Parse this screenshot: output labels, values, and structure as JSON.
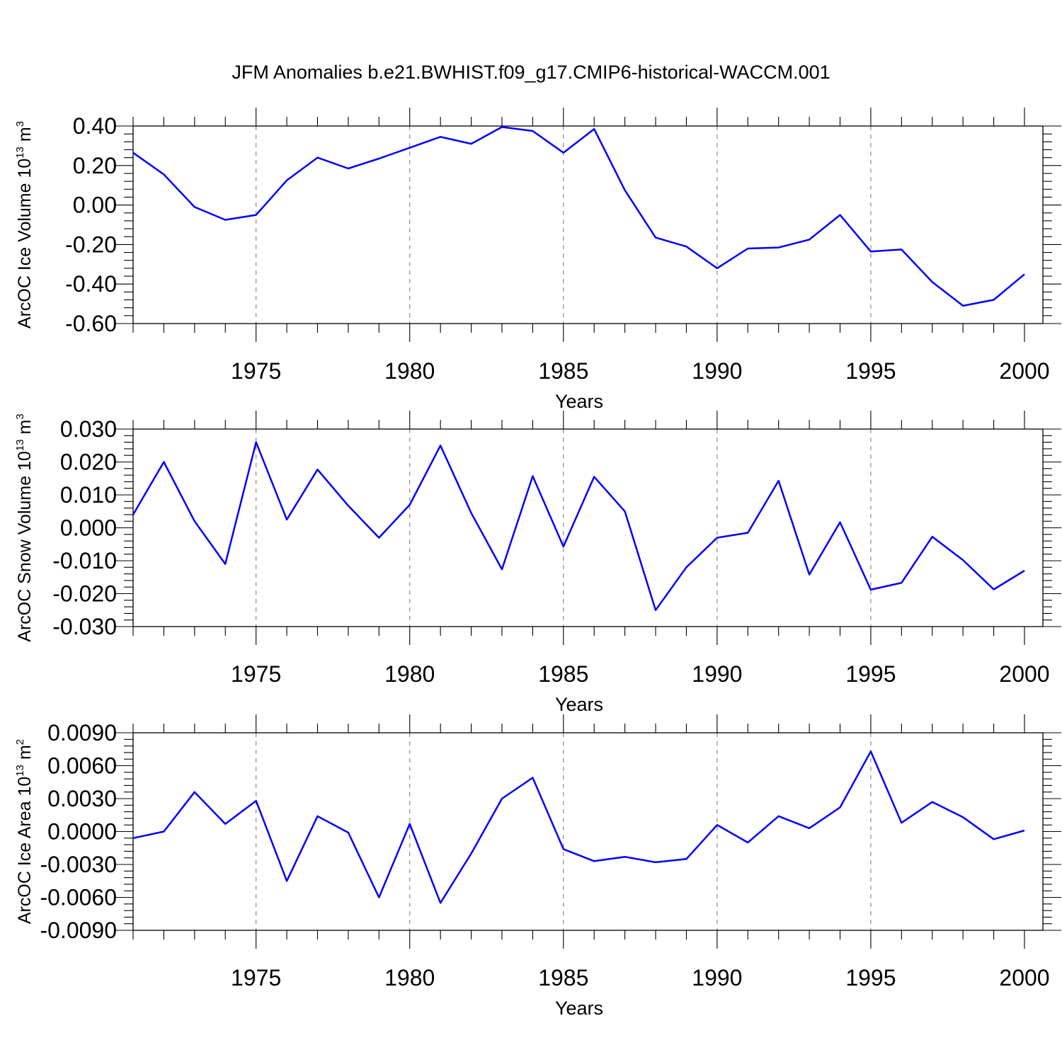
{
  "figure": {
    "title": "JFM Anomalies b.e21.BWHIST.f09_g17.CMIP6-historical-WACCM.001"
  },
  "colors": {
    "series": "#0000ff",
    "grid": "#808080",
    "axis": "#000000"
  },
  "chart_data": [
    {
      "type": "line",
      "title": "",
      "xlabel": "Years",
      "ylabel": "ArcOC Ice Volume 10",
      "ylabel_sup": "13",
      "ylabel_unit": "m",
      "ylabel_unit_sup": "3",
      "xlim": [
        1971,
        2000
      ],
      "ylim": [
        -0.6,
        0.4
      ],
      "yticks": [
        "0.40",
        "0.20",
        "0.00",
        "-0.20",
        "-0.40",
        "-0.60"
      ],
      "ytick_values": [
        0.4,
        0.2,
        0.0,
        -0.2,
        -0.4,
        -0.6
      ],
      "xticks": [
        "1975",
        "1980",
        "1985",
        "1990",
        "1995",
        "2000"
      ],
      "xtick_values": [
        1975,
        1980,
        1985,
        1990,
        1995,
        2000
      ],
      "grid": "vertical dashed at major x ticks",
      "legend": "none",
      "x": [
        1971,
        1972,
        1973,
        1974,
        1975,
        1976,
        1977,
        1978,
        1979,
        1980,
        1981,
        1982,
        1983,
        1984,
        1985,
        1986,
        1987,
        1988,
        1989,
        1990,
        1991,
        1992,
        1993,
        1994,
        1995,
        1996,
        1997,
        1998,
        1999,
        2000
      ],
      "values": [
        0.265,
        0.155,
        -0.01,
        -0.075,
        -0.05,
        0.125,
        0.24,
        0.185,
        0.235,
        0.29,
        0.345,
        0.31,
        0.395,
        0.375,
        0.265,
        0.385,
        0.075,
        -0.165,
        -0.21,
        -0.32,
        -0.22,
        -0.215,
        -0.175,
        -0.05,
        -0.235,
        -0.225,
        -0.39,
        -0.51,
        -0.48,
        -0.35
      ]
    },
    {
      "type": "line",
      "title": "",
      "xlabel": "Years",
      "ylabel": "ArcOC Snow Volume 10",
      "ylabel_sup": "13",
      "ylabel_unit": "m",
      "ylabel_unit_sup": "3",
      "xlim": [
        1971,
        2000
      ],
      "ylim": [
        -0.03,
        0.03
      ],
      "yticks": [
        "0.030",
        "0.020",
        "0.010",
        "0.000",
        "-0.010",
        "-0.020",
        "-0.030"
      ],
      "ytick_values": [
        0.03,
        0.02,
        0.01,
        0.0,
        -0.01,
        -0.02,
        -0.03
      ],
      "xticks": [
        "1975",
        "1980",
        "1985",
        "1990",
        "1995",
        "2000"
      ],
      "xtick_values": [
        1975,
        1980,
        1985,
        1990,
        1995,
        2000
      ],
      "grid": "vertical dashed at major x ticks",
      "legend": "none",
      "x": [
        1971,
        1972,
        1973,
        1974,
        1975,
        1976,
        1977,
        1978,
        1979,
        1980,
        1981,
        1982,
        1983,
        1984,
        1985,
        1986,
        1987,
        1988,
        1989,
        1990,
        1991,
        1992,
        1993,
        1994,
        1995,
        1996,
        1997,
        1998,
        1999,
        2000
      ],
      "values": [
        0.004,
        0.02,
        0.002,
        -0.011,
        0.026,
        0.0025,
        0.0177,
        0.0067,
        -0.003,
        0.007,
        0.025,
        0.0045,
        -0.0126,
        0.0157,
        -0.0057,
        0.0155,
        0.005,
        -0.025,
        -0.012,
        -0.003,
        -0.0015,
        0.0143,
        -0.0142,
        0.0017,
        -0.0188,
        -0.0167,
        -0.0027,
        -0.0098,
        -0.0187,
        -0.013
      ]
    },
    {
      "type": "line",
      "title": "",
      "xlabel": "Years",
      "ylabel": "ArcOC Ice Area 10",
      "ylabel_sup": "13",
      "ylabel_unit": "m",
      "ylabel_unit_sup": "2",
      "xlim": [
        1971,
        2000
      ],
      "ylim": [
        -0.009,
        0.009
      ],
      "yticks": [
        "0.0090",
        "0.0060",
        "0.0030",
        "0.0000",
        "-0.0030",
        "-0.0060",
        "-0.0090"
      ],
      "ytick_values": [
        0.009,
        0.006,
        0.003,
        0.0,
        -0.003,
        -0.006,
        -0.009
      ],
      "xticks": [
        "1975",
        "1980",
        "1985",
        "1990",
        "1995",
        "2000"
      ],
      "xtick_values": [
        1975,
        1980,
        1985,
        1990,
        1995,
        2000
      ],
      "grid": "vertical dashed at major x ticks",
      "legend": "none",
      "x": [
        1971,
        1972,
        1973,
        1974,
        1975,
        1976,
        1977,
        1978,
        1979,
        1980,
        1981,
        1982,
        1983,
        1984,
        1985,
        1986,
        1987,
        1988,
        1989,
        1990,
        1991,
        1992,
        1993,
        1994,
        1995,
        1996,
        1997,
        1998,
        1999,
        2000
      ],
      "values": [
        -0.0006,
        0.0,
        0.0036,
        0.0007,
        0.0028,
        -0.0045,
        0.0014,
        -0.0001,
        -0.006,
        0.0007,
        -0.0065,
        -0.002,
        0.003,
        0.0049,
        -0.0016,
        -0.0027,
        -0.0023,
        -0.0028,
        -0.0025,
        0.0006,
        -0.001,
        0.0014,
        0.0003,
        0.0022,
        0.0073,
        0.0008,
        0.0027,
        0.0013,
        -0.0007,
        0.0001
      ]
    }
  ]
}
